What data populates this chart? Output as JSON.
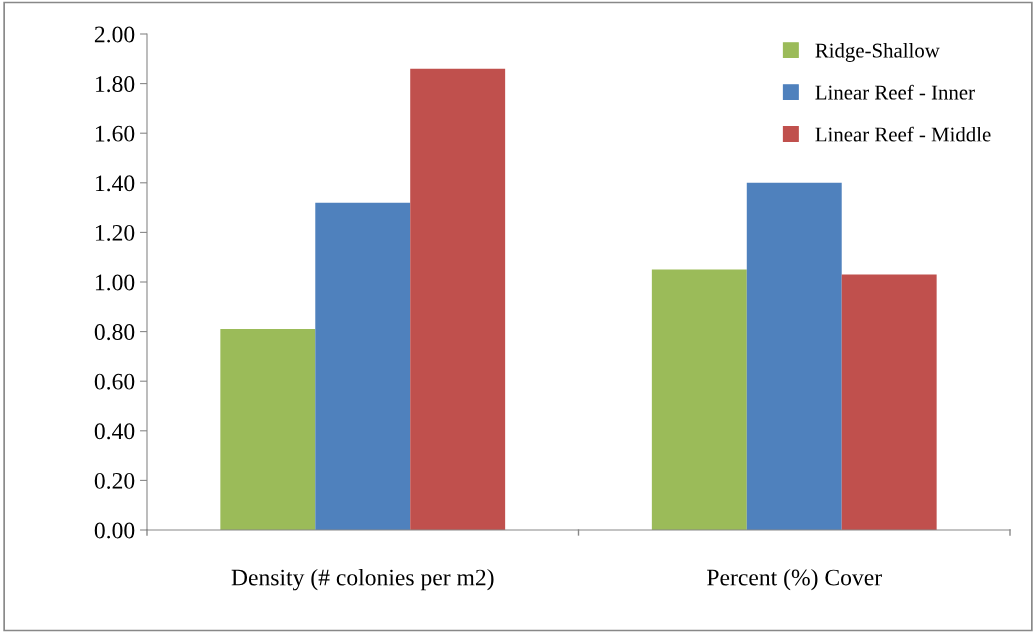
{
  "chart_data": {
    "type": "bar",
    "categories": [
      "Density (# colonies per m2)",
      "Percent (%) Cover"
    ],
    "series": [
      {
        "name": "Ridge-Shallow",
        "color": "#9bbb59",
        "values": [
          0.81,
          1.05
        ]
      },
      {
        "name": "Linear Reef - Inner",
        "color": "#4f81bd",
        "values": [
          1.32,
          1.4
        ]
      },
      {
        "name": "Linear Reef - Middle",
        "color": "#c0504d",
        "values": [
          1.86,
          1.03
        ]
      }
    ],
    "ylim": [
      0,
      2
    ],
    "yticks": [
      {
        "value": 0,
        "label": "0.00"
      },
      {
        "value": 0.2,
        "label": "0.20"
      },
      {
        "value": 0.4,
        "label": "0.40"
      },
      {
        "value": 0.6,
        "label": "0.60"
      },
      {
        "value": 0.8,
        "label": "0.80"
      },
      {
        "value": 1,
        "label": "1.00"
      },
      {
        "value": 1.2,
        "label": "1.20"
      },
      {
        "value": 1.4,
        "label": "1.40"
      },
      {
        "value": 1.6,
        "label": "1.60"
      },
      {
        "value": 1.8,
        "label": "1.80"
      },
      {
        "value": 2,
        "label": "2.00"
      }
    ],
    "grid": false,
    "legend": "top right"
  }
}
